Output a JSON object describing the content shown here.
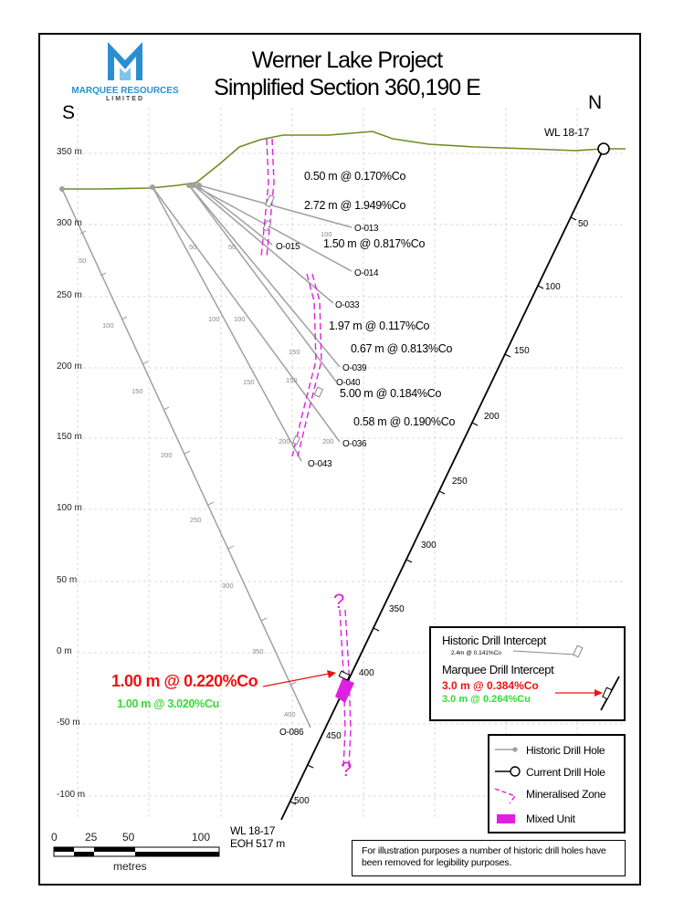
{
  "title_line1": "Werner Lake Project",
  "title_line2": "Simplified Section 360,190 E",
  "logo": {
    "name": "MARQUEE RESOURCES",
    "sub": "LIMITED",
    "color": "#2a8fd0"
  },
  "direction": {
    "south": "S",
    "north": "N"
  },
  "elevation_labels": [
    "350 m",
    "300 m",
    "250 m",
    "200 m",
    "150 m",
    "100 m",
    "50 m",
    "0 m",
    "-50 m",
    "-100 m"
  ],
  "current_hole": {
    "name": "WL 18-17",
    "end_name": "WL 18-17",
    "eoh": "EOH 517 m",
    "ticks": [
      "50",
      "100",
      "150",
      "200",
      "250",
      "300",
      "350",
      "400",
      "450",
      "500"
    ]
  },
  "historic_holes": [
    "O-013",
    "O-015",
    "O-014",
    "O-033",
    "O-039",
    "O-040",
    "O-036",
    "O-043",
    "O-086"
  ],
  "historic_ticks": [
    "50",
    "100",
    "150",
    "200",
    "250",
    "300",
    "350",
    "400",
    "50",
    "100",
    "150",
    "200",
    "50",
    "100",
    "150",
    "200",
    "100",
    "150"
  ],
  "intercepts": [
    "0.50 m @ 0.170%Co",
    "2.72 m @ 1.949%Co",
    "1.50 m @ 0.817%Co",
    "1.97 m @ 0.117%Co",
    "0.67 m @ 0.813%Co",
    "5.00 m @ 0.184%Co",
    "0.58 m @ 0.190%Co"
  ],
  "marquee_intercept": {
    "co": "1.00 m @ 0.220%Co",
    "cu": "1.00 m @ 3.020%Cu"
  },
  "question_mark": "?",
  "intercept_legend": {
    "historic_title": "Historic Drill Intercept",
    "historic_example": "2.4m @ 0.141%Co",
    "marquee_title": "Marquee Drill Intercept",
    "marquee_co": "3.0 m @ 0.384%Co",
    "marquee_cu": "3.0 m @ 0.264%Cu"
  },
  "legend": {
    "historic_hole": "Historic Drill Hole",
    "current_hole": "Current Drill Hole",
    "mineralised": "Mineralised Zone",
    "mixed": "Mixed Unit"
  },
  "scale": {
    "labels": [
      "0",
      "25",
      "50",
      "100"
    ],
    "unit": "metres"
  },
  "note": "For illustration purposes a number of historic drill holes have been removed for legibility purposes.",
  "colors": {
    "surface": "#6b8e23",
    "historic": "#a0a0a0",
    "magenta": "#e020e0",
    "red": "#ee1111",
    "green": "#33dd33",
    "grid": "#d0d0d0"
  }
}
